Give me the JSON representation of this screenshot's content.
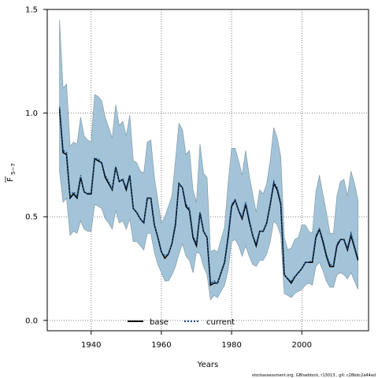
{
  "chart_data": {
    "type": "line",
    "xlabel": "Years",
    "ylabel": "F̄5−7",
    "ylabel_main": "F",
    "ylabel_sub": "5−7",
    "xlim": [
      1927.5,
      2019
    ],
    "ylim": [
      -0.05,
      1.5
    ],
    "xticks": [
      1940,
      1960,
      1980,
      2000
    ],
    "yticks": [
      0.0,
      0.5,
      1.0,
      1.5
    ],
    "ytick_labels": [
      "0.0",
      "0.5",
      "1.0",
      "1.5"
    ],
    "grid": true,
    "legend_position": "bottom-center",
    "footnote": "stockassessment.org, GBhaddock, r13013 , git: c28bdc2a44ad",
    "colors": {
      "band": "#a3c4d8",
      "band_edge": "#7f9aa8",
      "base": "#000000",
      "current": "#1a4f8a"
    },
    "x": [
      1931,
      1932,
      1933,
      1934,
      1935,
      1936,
      1937,
      1938,
      1939,
      1940,
      1941,
      1942,
      1943,
      1944,
      1945,
      1946,
      1947,
      1948,
      1949,
      1950,
      1951,
      1952,
      1953,
      1954,
      1955,
      1956,
      1957,
      1958,
      1959,
      1960,
      1961,
      1962,
      1963,
      1964,
      1965,
      1966,
      1967,
      1968,
      1969,
      1970,
      1971,
      1972,
      1973,
      1974,
      1975,
      1976,
      1977,
      1978,
      1979,
      1980,
      1981,
      1982,
      1983,
      1984,
      1985,
      1986,
      1987,
      1988,
      1989,
      1990,
      1991,
      1992,
      1993,
      1994,
      1995,
      1996,
      1997,
      1998,
      1999,
      2000,
      2001,
      2002,
      2003,
      2004,
      2005,
      2006,
      2007,
      2008,
      2009,
      2010,
      2011,
      2012,
      2013,
      2014,
      2015,
      2016
    ],
    "upper": [
      1.45,
      1.12,
      1.14,
      0.84,
      0.86,
      0.85,
      0.98,
      0.89,
      0.87,
      0.86,
      1.09,
      1.08,
      1.06,
      0.98,
      0.93,
      0.88,
      1.04,
      0.94,
      0.96,
      0.89,
      0.99,
      0.77,
      0.76,
      0.72,
      0.71,
      0.86,
      0.87,
      0.69,
      0.58,
      0.47,
      0.5,
      0.55,
      0.6,
      0.77,
      0.95,
      0.92,
      0.8,
      0.82,
      0.63,
      0.57,
      0.85,
      0.71,
      0.69,
      0.33,
      0.34,
      0.33,
      0.39,
      0.45,
      0.66,
      0.83,
      0.83,
      0.77,
      0.7,
      0.82,
      0.7,
      0.61,
      0.52,
      0.63,
      0.61,
      0.66,
      0.77,
      0.93,
      0.88,
      0.79,
      0.4,
      0.34,
      0.35,
      0.39,
      0.4,
      0.46,
      0.46,
      0.43,
      0.42,
      0.62,
      0.7,
      0.61,
      0.52,
      0.42,
      0.42,
      0.6,
      0.67,
      0.68,
      0.6,
      0.72,
      0.66,
      0.58
    ],
    "lower": [
      0.72,
      0.57,
      0.59,
      0.41,
      0.43,
      0.42,
      0.48,
      0.44,
      0.43,
      0.43,
      0.56,
      0.55,
      0.54,
      0.49,
      0.47,
      0.44,
      0.53,
      0.47,
      0.48,
      0.44,
      0.49,
      0.38,
      0.38,
      0.36,
      0.34,
      0.42,
      0.42,
      0.33,
      0.27,
      0.23,
      0.19,
      0.19,
      0.22,
      0.26,
      0.32,
      0.37,
      0.31,
      0.29,
      0.23,
      0.33,
      0.32,
      0.26,
      0.22,
      0.1,
      0.12,
      0.11,
      0.14,
      0.17,
      0.24,
      0.38,
      0.39,
      0.36,
      0.31,
      0.36,
      0.31,
      0.27,
      0.26,
      0.29,
      0.29,
      0.32,
      0.38,
      0.48,
      0.46,
      0.41,
      0.13,
      0.12,
      0.11,
      0.13,
      0.14,
      0.15,
      0.17,
      0.18,
      0.17,
      0.26,
      0.28,
      0.24,
      0.19,
      0.16,
      0.16,
      0.22,
      0.23,
      0.22,
      0.2,
      0.23,
      0.19,
      0.15
    ],
    "series": [
      {
        "name": "base",
        "style": "solid",
        "values": [
          1.02,
          0.81,
          0.8,
          0.59,
          0.61,
          0.59,
          0.69,
          0.62,
          0.61,
          0.61,
          0.78,
          0.77,
          0.76,
          0.69,
          0.66,
          0.63,
          0.74,
          0.67,
          0.68,
          0.63,
          0.7,
          0.54,
          0.52,
          0.49,
          0.47,
          0.59,
          0.59,
          0.46,
          0.4,
          0.33,
          0.3,
          0.32,
          0.37,
          0.46,
          0.66,
          0.64,
          0.55,
          0.53,
          0.4,
          0.36,
          0.52,
          0.43,
          0.4,
          0.17,
          0.18,
          0.18,
          0.23,
          0.28,
          0.4,
          0.55,
          0.58,
          0.53,
          0.49,
          0.56,
          0.48,
          0.41,
          0.36,
          0.43,
          0.43,
          0.47,
          0.56,
          0.66,
          0.63,
          0.56,
          0.22,
          0.2,
          0.18,
          0.21,
          0.23,
          0.25,
          0.28,
          0.28,
          0.28,
          0.4,
          0.44,
          0.38,
          0.31,
          0.26,
          0.26,
          0.36,
          0.39,
          0.39,
          0.34,
          0.41,
          0.35,
          0.29
        ]
      },
      {
        "name": "current",
        "style": "dotted",
        "values": [
          1.03,
          0.82,
          0.81,
          0.6,
          0.62,
          0.6,
          0.7,
          0.62,
          0.61,
          0.62,
          0.78,
          0.78,
          0.76,
          0.7,
          0.67,
          0.63,
          0.74,
          0.67,
          0.68,
          0.64,
          0.7,
          0.54,
          0.52,
          0.49,
          0.47,
          0.59,
          0.59,
          0.46,
          0.4,
          0.33,
          0.31,
          0.32,
          0.37,
          0.47,
          0.66,
          0.64,
          0.56,
          0.54,
          0.41,
          0.37,
          0.52,
          0.43,
          0.4,
          0.18,
          0.19,
          0.18,
          0.23,
          0.28,
          0.41,
          0.56,
          0.58,
          0.53,
          0.5,
          0.57,
          0.49,
          0.41,
          0.37,
          0.43,
          0.43,
          0.47,
          0.56,
          0.67,
          0.64,
          0.57,
          0.22,
          0.2,
          0.19,
          0.21,
          0.23,
          0.25,
          0.28,
          0.28,
          0.29,
          0.41,
          0.44,
          0.39,
          0.32,
          0.27,
          0.27,
          0.37,
          0.39,
          0.39,
          0.35,
          0.42,
          0.36,
          0.3
        ]
      }
    ]
  }
}
